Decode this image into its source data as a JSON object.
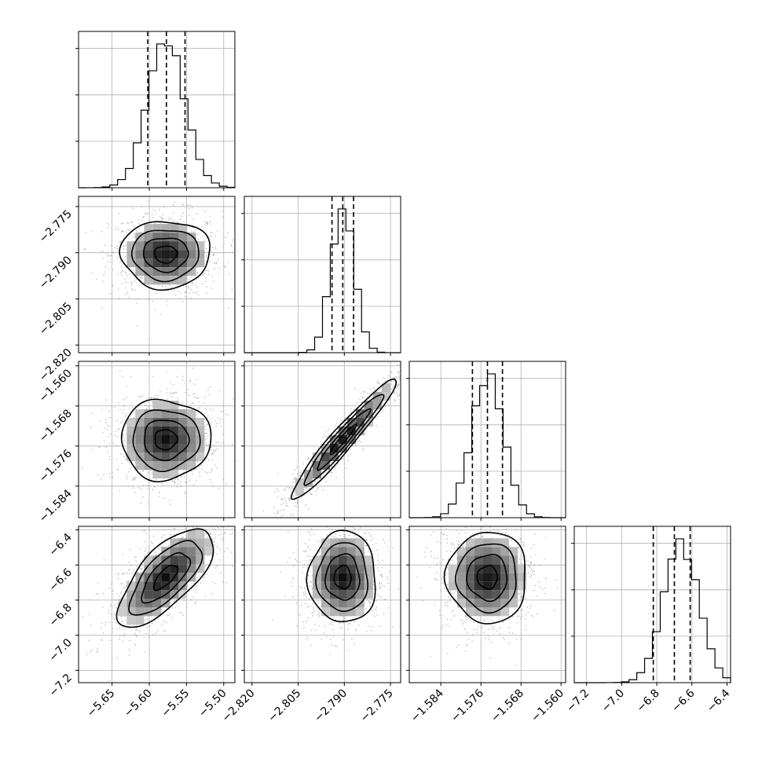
{
  "chart_data": {
    "type": "corner",
    "parameters": [
      {
        "index": 0,
        "range": [
          -5.695,
          -5.485
        ],
        "ticks": [
          -5.65,
          -5.6,
          -5.55,
          -5.5
        ],
        "tick_labels": [
          "−5.65",
          "−5.60",
          "−5.55",
          "−5.50"
        ],
        "hist_peak": -5.577,
        "hist_sigma": 0.025,
        "quantiles": [
          -5.602,
          -5.577,
          -5.552
        ]
      },
      {
        "index": 1,
        "range": [
          -2.8225,
          -2.7717
        ],
        "ticks": [
          -2.82,
          -2.805,
          -2.79,
          -2.775
        ],
        "tick_labels": [
          "−2.820",
          "−2.805",
          "−2.790",
          "−2.775"
        ],
        "hist_peak": -2.7905,
        "hist_sigma": 0.0037,
        "quantiles": [
          -2.794,
          -2.7905,
          -2.787
        ]
      },
      {
        "index": 2,
        "range": [
          -1.5903,
          -1.5591
        ],
        "ticks": [
          -1.584,
          -1.576,
          -1.568,
          -1.56
        ],
        "tick_labels": [
          "−1.584",
          "−1.576",
          "−1.568",
          "−1.560"
        ],
        "hist_peak": -1.5747,
        "hist_sigma": 0.0032,
        "quantiles": [
          -1.5777,
          -1.5747,
          -1.5717
        ]
      },
      {
        "index": 3,
        "range": [
          -7.27,
          -6.38
        ],
        "ticks": [
          -7.2,
          -7.0,
          -6.8,
          -6.6,
          -6.4
        ],
        "tick_labels": [
          "−7.2",
          "−7.0",
          "−6.8",
          "−6.6",
          "−6.4"
        ],
        "hist_peak": -6.66,
        "hist_sigma": 0.1,
        "quantiles": [
          -6.82,
          -6.7,
          -6.61
        ]
      }
    ],
    "pairs": [
      {
        "row": 1,
        "col": 0,
        "center": [
          -5.578,
          -2.7905
        ],
        "sigma": [
          0.03,
          0.0055
        ],
        "rho": 0.0
      },
      {
        "row": 2,
        "col": 0,
        "center": [
          -5.578,
          -1.5747
        ],
        "sigma": [
          0.03,
          0.004
        ],
        "rho": 0.0
      },
      {
        "row": 2,
        "col": 1,
        "center": [
          -2.7905,
          -1.5747
        ],
        "sigma": [
          0.0085,
          0.006
        ],
        "rho": 0.96
      },
      {
        "row": 3,
        "col": 0,
        "center": [
          -5.578,
          -6.67
        ],
        "sigma": [
          0.032,
          0.14
        ],
        "rho": 0.7
      },
      {
        "row": 3,
        "col": 1,
        "center": [
          -2.7905,
          -6.67
        ],
        "sigma": [
          0.0055,
          0.13
        ],
        "rho": 0.0
      },
      {
        "row": 3,
        "col": 2,
        "center": [
          -1.5747,
          -6.67
        ],
        "sigma": [
          0.004,
          0.13
        ],
        "rho": 0.0
      }
    ],
    "contour_levels_sigma": [
      0.5,
      1.0,
      1.5,
      2.0
    ],
    "grid": true,
    "title": "",
    "axis_labels": []
  }
}
